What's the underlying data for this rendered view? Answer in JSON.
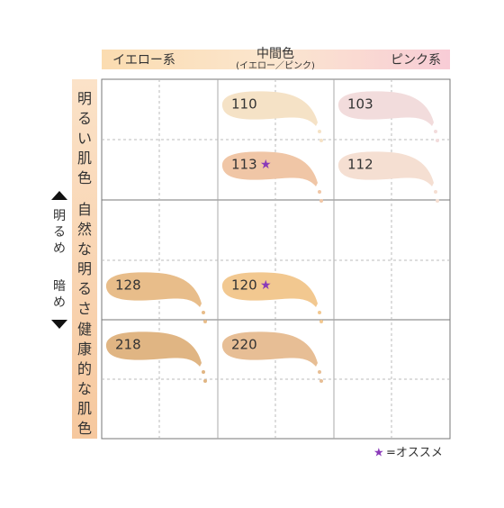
{
  "header": {
    "columns": [
      "イエロー系",
      "中間色",
      "ピンク系"
    ],
    "subtitle": "(イエロー／ピンク)"
  },
  "side": {
    "top": "明るめ",
    "bottom": "暗め"
  },
  "rows": [
    "明るい肌色",
    "自然な明るさ",
    "健康的な肌色"
  ],
  "shades": [
    {
      "label": "110",
      "color": "#f5e2c6",
      "recommended": false
    },
    {
      "label": "103",
      "color": "#f2dcdc",
      "recommended": false
    },
    {
      "label": "113",
      "color": "#f0c6a6",
      "recommended": true
    },
    {
      "label": "112",
      "color": "#f5dfd2",
      "recommended": false
    },
    {
      "label": "128",
      "color": "#e8bd8a",
      "recommended": false
    },
    {
      "label": "120",
      "color": "#f2c890",
      "recommended": true
    },
    {
      "label": "218",
      "color": "#e0b583",
      "recommended": false
    },
    {
      "label": "220",
      "color": "#e7be95",
      "recommended": false
    }
  ],
  "legend": {
    "symbol": "★",
    "text": "=オススメ"
  }
}
